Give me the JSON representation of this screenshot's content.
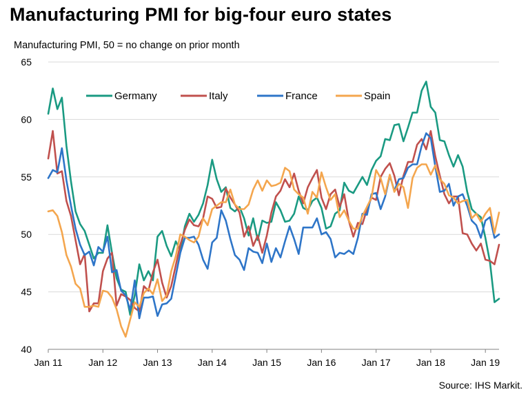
{
  "chart_data": {
    "type": "line",
    "title": "Manufacturing  PMI for big-four euro states",
    "subtitle": "Manufacturing PMI, 50 = no change on prior month",
    "source": "Source: IHS Markit.",
    "x_tick_labels": [
      "Jan 11",
      "Jan 12",
      "Jan 13",
      "Jan 14",
      "Jan 15",
      "Jan 16",
      "Jan 17",
      "Jan 18",
      "Jan 19"
    ],
    "y_ticks": [
      40,
      45,
      50,
      55,
      60,
      65
    ],
    "ylim": [
      40,
      65
    ],
    "x_start": "Jan 11",
    "grid": "horizontal",
    "legend_position": "top",
    "series": [
      {
        "name": "Germany",
        "color": "#1a9a82",
        "values": [
          60.5,
          62.7,
          60.9,
          61.9,
          57.7,
          54.6,
          52.0,
          50.9,
          50.3,
          49.1,
          47.9,
          48.4,
          48.4,
          50.8,
          48.4,
          46.2,
          45.2,
          45.0,
          43.0,
          44.7,
          47.4,
          46.0,
          46.8,
          46.0,
          49.8,
          50.3,
          49.0,
          48.1,
          49.4,
          48.6,
          50.7,
          51.8,
          51.1,
          51.7,
          52.7,
          54.3,
          56.5,
          54.8,
          53.7,
          54.1,
          52.3,
          52.0,
          52.4,
          51.4,
          49.9,
          51.4,
          49.5,
          51.2,
          51.0,
          51.1,
          52.8,
          52.1,
          51.1,
          51.2,
          51.8,
          53.3,
          52.3,
          52.1,
          52.9,
          53.2,
          52.3,
          50.5,
          50.7,
          51.8,
          52.1,
          54.5,
          53.8,
          53.6,
          54.3,
          55.0,
          54.3,
          55.6,
          56.4,
          56.8,
          58.3,
          58.2,
          59.5,
          59.6,
          58.1,
          59.3,
          60.6,
          60.6,
          62.5,
          63.3,
          61.1,
          60.6,
          58.2,
          58.1,
          56.9,
          55.9,
          56.9,
          55.9,
          53.7,
          52.2,
          51.8,
          51.5,
          49.7,
          47.6,
          44.1,
          44.4
        ]
      },
      {
        "name": "Italy",
        "color": "#c0504d",
        "values": [
          56.6,
          59.0,
          55.3,
          55.5,
          52.9,
          51.6,
          49.5,
          47.4,
          48.3,
          43.3,
          44.0,
          44.0,
          46.8,
          47.9,
          48.4,
          43.8,
          44.8,
          44.6,
          44.3,
          43.6,
          43.3,
          45.5,
          45.1,
          46.7,
          47.8,
          45.8,
          44.5,
          45.5,
          47.3,
          49.1,
          50.4,
          51.3,
          50.8,
          50.7,
          51.4,
          53.3,
          53.1,
          52.3,
          52.4,
          54.0,
          53.2,
          52.6,
          51.9,
          49.8,
          50.7,
          49.0,
          49.9,
          48.4,
          49.9,
          51.9,
          53.3,
          53.8,
          54.8,
          54.1,
          55.3,
          53.8,
          52.7,
          54.1,
          54.9,
          55.6,
          53.2,
          52.2,
          53.5,
          53.9,
          52.4,
          53.5,
          51.2,
          49.8,
          51.0,
          50.9,
          52.2,
          53.2,
          53.0,
          55.0,
          55.7,
          56.2,
          55.1,
          53.4,
          55.1,
          56.3,
          56.3,
          57.8,
          58.3,
          57.4,
          59.0,
          56.8,
          55.1,
          53.5,
          52.7,
          53.3,
          53.3,
          50.1,
          50.0,
          49.2,
          48.6,
          49.2,
          47.8,
          47.7,
          47.4,
          49.1
        ]
      },
      {
        "name": "France",
        "color": "#2e75c8",
        "values": [
          54.9,
          55.6,
          55.4,
          57.5,
          54.7,
          52.5,
          50.5,
          49.1,
          48.2,
          48.5,
          47.3,
          48.9,
          48.5,
          49.8,
          46.7,
          46.9,
          45.1,
          44.7,
          43.4,
          46.0,
          42.7,
          44.5,
          44.5,
          44.6,
          42.9,
          43.9,
          44.0,
          44.4,
          46.4,
          48.4,
          49.7,
          49.7,
          49.8,
          49.1,
          47.8,
          47.0,
          49.3,
          49.7,
          52.1,
          51.2,
          49.6,
          48.2,
          47.8,
          46.9,
          48.8,
          48.5,
          48.4,
          47.5,
          49.2,
          47.6,
          48.8,
          48.0,
          49.4,
          50.7,
          49.6,
          48.3,
          50.6,
          50.6,
          50.6,
          51.4,
          50.0,
          50.2,
          49.6,
          48.0,
          48.4,
          48.3,
          48.6,
          48.3,
          49.7,
          51.8,
          51.7,
          53.5,
          53.6,
          52.2,
          53.3,
          55.1,
          53.8,
          54.8,
          54.9,
          55.8,
          56.1,
          56.1,
          57.7,
          58.8,
          58.4,
          55.9,
          53.7,
          53.8,
          54.4,
          52.5,
          53.3,
          53.5,
          52.5,
          51.2,
          50.8,
          49.7,
          51.2,
          51.5,
          49.7,
          50.0
        ]
      },
      {
        "name": "Spain",
        "color": "#f4a64e",
        "values": [
          52.0,
          52.1,
          51.6,
          50.2,
          48.2,
          47.2,
          45.7,
          45.3,
          43.7,
          43.7,
          43.8,
          43.7,
          45.1,
          45.0,
          44.5,
          43.5,
          42.0,
          41.1,
          42.6,
          44.1,
          43.7,
          44.9,
          45.3,
          44.8,
          46.1,
          44.2,
          44.7,
          46.8,
          48.1,
          50.0,
          49.8,
          49.5,
          49.3,
          49.8,
          51.4,
          50.8,
          52.2,
          52.5,
          52.8,
          52.8,
          53.9,
          52.6,
          52.2,
          52.2,
          52.6,
          53.9,
          54.7,
          53.8,
          54.7,
          54.2,
          54.3,
          54.5,
          55.8,
          55.5,
          53.9,
          53.5,
          53.2,
          51.8,
          53.7,
          53.2,
          55.4,
          54.1,
          53.0,
          53.5,
          51.5,
          52.1,
          51.2,
          50.5,
          50.5,
          51.6,
          52.4,
          53.2,
          55.6,
          54.9,
          53.5,
          55.2,
          53.7,
          54.4,
          54.1,
          52.3,
          54.9,
          55.8,
          56.1,
          56.1,
          55.2,
          56.0,
          54.8,
          54.4,
          53.4,
          53.2,
          52.7,
          52.9,
          53.0,
          51.4,
          51.8,
          51.1,
          51.8,
          52.3,
          50.1,
          51.9
        ]
      }
    ]
  }
}
